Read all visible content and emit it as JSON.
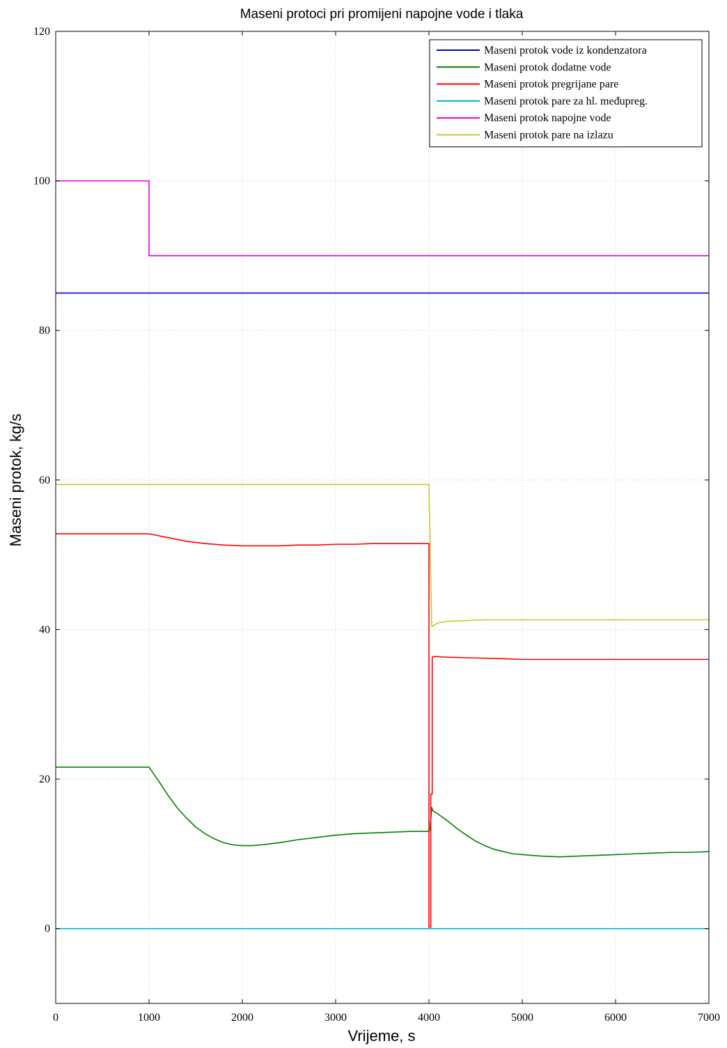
{
  "chart_data": {
    "type": "line",
    "title": "Maseni protoci pri promijeni napojne vode i tlaka",
    "xlabel": "Vrijeme, s",
    "ylabel": "Maseni protok, kg/s",
    "xlim": [
      0,
      7000
    ],
    "ylim": [
      -10,
      120
    ],
    "xticks": [
      0,
      1000,
      2000,
      3000,
      4000,
      5000,
      6000,
      7000
    ],
    "yticks": [
      0,
      20,
      40,
      60,
      80,
      100,
      120
    ],
    "grid": true,
    "legend_position": "top-right",
    "series": [
      {
        "name": "Maseni protok vode iz kondenzatora",
        "color": "#0000cc",
        "x": [
          0,
          7000
        ],
        "y": [
          85,
          85
        ]
      },
      {
        "name": "Maseni protok dodatne vode",
        "color": "#008000",
        "x": [
          0,
          1000,
          1100,
          1200,
          1300,
          1400,
          1500,
          1600,
          1700,
          1800,
          1900,
          2000,
          2100,
          2200,
          2400,
          2600,
          2800,
          3000,
          3200,
          3400,
          3600,
          3800,
          4000,
          4010,
          4020,
          4030,
          4040,
          4100,
          4200,
          4300,
          4400,
          4500,
          4600,
          4700,
          4800,
          4900,
          5000,
          5200,
          5400,
          5600,
          5800,
          6000,
          6200,
          6400,
          6600,
          6800,
          7000
        ],
        "y": [
          21.6,
          21.6,
          19.8,
          17.9,
          16.2,
          14.8,
          13.6,
          12.7,
          12.0,
          11.5,
          11.2,
          11.1,
          11.1,
          11.2,
          11.5,
          11.9,
          12.2,
          12.5,
          12.7,
          12.8,
          12.9,
          13.0,
          13.0,
          13.2,
          14.6,
          16.2,
          15.8,
          15.3,
          14.4,
          13.4,
          12.5,
          11.7,
          11.1,
          10.6,
          10.3,
          10.0,
          9.9,
          9.7,
          9.6,
          9.7,
          9.8,
          9.9,
          10.0,
          10.1,
          10.2,
          10.2,
          10.3
        ]
      },
      {
        "name": "Maseni protok pregrijane pare",
        "color": "#ff0000",
        "x": [
          0,
          1000,
          1200,
          1400,
          1600,
          1800,
          2000,
          2200,
          2400,
          2600,
          2800,
          3000,
          3200,
          3400,
          3600,
          3800,
          4000,
          4000,
          4020,
          4020,
          4035,
          4035,
          4050,
          4200,
          4500,
          4800,
          5000,
          5500,
          6000,
          6500,
          7000
        ],
        "y": [
          52.8,
          52.8,
          52.3,
          51.8,
          51.5,
          51.3,
          51.2,
          51.2,
          51.2,
          51.3,
          51.3,
          51.4,
          51.4,
          51.5,
          51.5,
          51.5,
          51.5,
          0.2,
          0.2,
          18.0,
          18.0,
          36.3,
          36.4,
          36.3,
          36.2,
          36.1,
          36.0,
          36.0,
          36.0,
          36.0,
          36.0
        ]
      },
      {
        "name": "Maseni protok pare za hl. međupreg.",
        "color": "#00b0c8",
        "x": [
          0,
          7000
        ],
        "y": [
          0,
          0
        ]
      },
      {
        "name": "Maseni protok napojne vode",
        "color": "#e000e0",
        "x": [
          0,
          1000,
          1000,
          7000
        ],
        "y": [
          100,
          100,
          90,
          90
        ]
      },
      {
        "name": "Maseni protok pare na izlazu",
        "color": "#c8c832",
        "x": [
          0,
          4000,
          4030,
          4100,
          4200,
          4400,
          4600,
          5000,
          5500,
          6000,
          7000
        ],
        "y": [
          59.4,
          59.4,
          40.4,
          40.9,
          41.1,
          41.2,
          41.3,
          41.3,
          41.3,
          41.3,
          41.3
        ]
      }
    ]
  }
}
